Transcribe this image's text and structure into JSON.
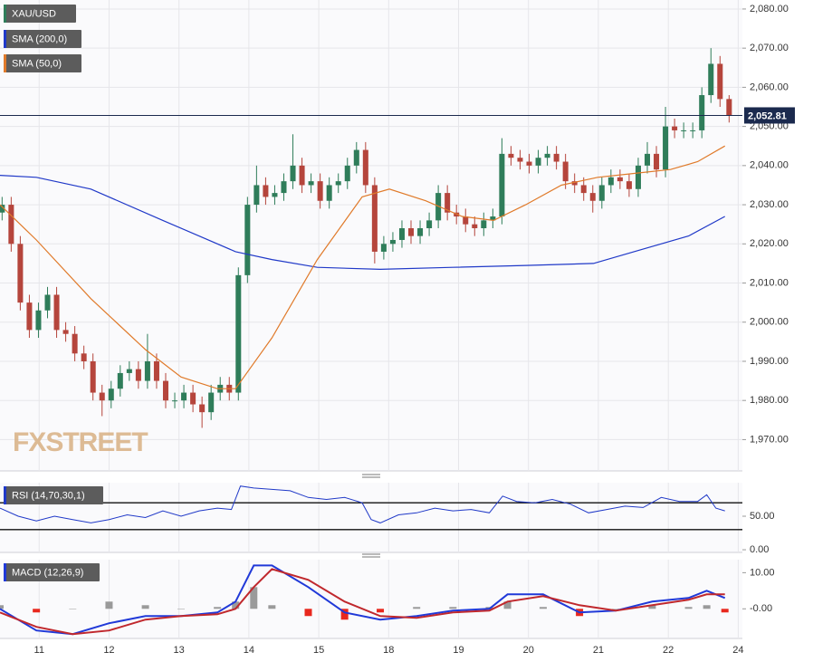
{
  "chart_data": [
    {
      "type": "candlestick",
      "name": "XAU/USD",
      "up_color": "#2f7d5a",
      "down_color": "#b5453c",
      "x": [
        -0.53,
        -0.4,
        -0.27,
        -0.14,
        -0.01,
        0.12,
        0.25,
        0.38,
        0.51,
        0.64,
        0.77,
        0.9,
        1.03,
        1.16,
        1.29,
        1.42,
        1.55,
        1.68,
        1.81,
        1.94,
        2.07,
        2.2,
        2.33,
        2.46,
        2.59,
        2.72,
        2.85,
        2.98,
        3.11,
        3.24,
        3.37,
        3.5,
        3.63,
        3.76,
        3.89,
        4.02,
        4.15,
        4.28,
        4.41,
        4.54,
        4.67,
        4.8,
        4.93,
        5.06,
        5.19,
        5.32,
        5.45,
        5.58,
        5.71,
        5.84,
        5.97,
        6.1,
        6.23,
        6.36,
        6.49,
        6.62,
        6.75,
        6.88,
        7.01,
        7.14,
        7.27,
        7.4,
        7.53,
        7.66,
        7.79,
        7.92,
        8.05,
        8.18,
        8.31,
        8.44,
        8.57,
        8.7,
        8.83,
        8.96,
        9.09,
        9.22,
        9.35,
        9.48,
        9.61,
        9.74,
        9.87
      ],
      "open": [
        2028,
        2030,
        2020,
        2005,
        1998,
        2003,
        2007,
        1998,
        1997,
        1992,
        1990,
        1982,
        1980,
        1983,
        1987,
        1988,
        1985,
        1990,
        1985,
        1980,
        1980,
        1982,
        1979,
        1977,
        1982,
        1984,
        1982,
        2012,
        2030,
        2035,
        2032,
        2033,
        2036,
        2040,
        2035,
        2036,
        2031,
        2035,
        2036,
        2040,
        2044,
        2035,
        2018,
        2020,
        2021,
        2024,
        2022,
        2024,
        2026,
        2033,
        2028,
        2027,
        2025,
        2024,
        2026,
        2027,
        2043,
        2042,
        2041,
        2040,
        2042,
        2043,
        2041,
        2036,
        2035,
        2033,
        2031,
        2035,
        2037,
        2036,
        2034,
        2040,
        2043,
        2039,
        2050,
        2049,
        2049,
        2049,
        2058,
        2066,
        2057
      ],
      "high": [
        2032,
        2032,
        2022,
        2007,
        2005,
        2009,
        2009,
        2000,
        1999,
        1994,
        1992,
        1984,
        1985,
        1989,
        1990,
        1990,
        1997,
        1992,
        1987,
        1982,
        1984,
        1984,
        1981,
        1984,
        1986,
        1986,
        2014,
        2032,
        2040,
        2037,
        2035,
        2038,
        2048,
        2042,
        2038,
        2038,
        2037,
        2038,
        2042,
        2046,
        2046,
        2037,
        2022,
        2023,
        2026,
        2026,
        2026,
        2028,
        2035,
        2035,
        2030,
        2029,
        2027,
        2028,
        2029,
        2047,
        2045,
        2044,
        2043,
        2044,
        2045,
        2045,
        2043,
        2038,
        2037,
        2035,
        2037,
        2039,
        2039,
        2038,
        2042,
        2046,
        2045,
        2055,
        2052,
        2051,
        2051,
        2060,
        2070,
        2068,
        2058
      ],
      "low": [
        2026,
        2018,
        2003,
        1996,
        1996,
        2001,
        1996,
        1995,
        1990,
        1988,
        1980,
        1976,
        1978,
        1981,
        1985,
        1983,
        1983,
        1983,
        1978,
        1978,
        1978,
        1977,
        1973,
        1975,
        1980,
        1980,
        1980,
        2010,
        2028,
        2030,
        2030,
        2031,
        2034,
        2033,
        2033,
        2029,
        2029,
        2033,
        2034,
        2038,
        2033,
        2015,
        2016,
        2018,
        2019,
        2020,
        2020,
        2022,
        2024,
        2026,
        2025,
        2023,
        2022,
        2022,
        2024,
        2025,
        2040,
        2039,
        2038,
        2038,
        2040,
        2039,
        2034,
        2033,
        2031,
        2028,
        2029,
        2033,
        2034,
        2032,
        2032,
        2038,
        2037,
        2037,
        2047,
        2047,
        2047,
        2047,
        2056,
        2055,
        2051
      ],
      "close": [
        2030,
        2020,
        2005,
        1998,
        2003,
        2007,
        1998,
        1997,
        1992,
        1990,
        1982,
        1980,
        1983,
        1987,
        1988,
        1985,
        1990,
        1985,
        1980,
        1980,
        1982,
        1979,
        1977,
        1982,
        1984,
        1982,
        2012,
        2030,
        2035,
        2032,
        2033,
        2036,
        2040,
        2035,
        2036,
        2031,
        2035,
        2036,
        2040,
        2044,
        2035,
        2018,
        2020,
        2021,
        2024,
        2022,
        2024,
        2026,
        2033,
        2028,
        2027,
        2025,
        2024,
        2026,
        2027,
        2043,
        2042,
        2041,
        2040,
        2042,
        2043,
        2041,
        2036,
        2035,
        2033,
        2031,
        2035,
        2037,
        2036,
        2034,
        2040,
        2043,
        2039,
        2050,
        2049,
        2049,
        2049,
        2058,
        2066,
        2057,
        2052.81
      ],
      "xlim": [
        -0.56,
        10.06
      ],
      "xticks": [
        {
          "value": 0,
          "label": "11"
        },
        {
          "value": 1,
          "label": "12"
        },
        {
          "value": 2,
          "label": "13"
        },
        {
          "value": 3,
          "label": "14"
        },
        {
          "value": 4,
          "label": "15"
        },
        {
          "value": 5,
          "label": "18"
        },
        {
          "value": 6,
          "label": "19"
        },
        {
          "value": 7,
          "label": "20"
        },
        {
          "value": 8,
          "label": "21"
        },
        {
          "value": 9,
          "label": "22"
        },
        {
          "value": 10,
          "label": "24"
        }
      ],
      "ylim": [
        1962,
        2082.3
      ],
      "yticks": [
        {
          "value": 1970,
          "label": "1,970.00"
        },
        {
          "value": 1980,
          "label": "1,980.00"
        },
        {
          "value": 1990,
          "label": "1,990.00"
        },
        {
          "value": 2000,
          "label": "2,000.00"
        },
        {
          "value": 2010,
          "label": "2,010.00"
        },
        {
          "value": 2020,
          "label": "2,020.00"
        },
        {
          "value": 2030,
          "label": "2,030.00"
        },
        {
          "value": 2040,
          "label": "2,040.00"
        },
        {
          "value": 2050,
          "label": "2,050.00"
        },
        {
          "value": 2060,
          "label": "2,060.00"
        },
        {
          "value": 2070,
          "label": "2,070.00"
        },
        {
          "value": 2080,
          "label": "2,080.00"
        }
      ],
      "grid": true,
      "current_price": {
        "value": 2052.81,
        "label": "2,052.81"
      },
      "watermark": "FXSTREET",
      "overlays": [
        {
          "name": "SMA (200,0)",
          "color": "#2039c8",
          "x": [
            -0.56,
            -0.04,
            0.74,
            1.77,
            2.81,
            3.33,
            3.98,
            4.88,
            5.92,
            6.96,
            7.93,
            8.51,
            9.29,
            9.81
          ],
          "values": [
            2037.5,
            2037,
            2034,
            2026,
            2018,
            2016,
            2014,
            2013.5,
            2014,
            2014.5,
            2015,
            2018,
            2022,
            2027
          ]
        },
        {
          "name": "SMA (50,0)",
          "color": "#e07a2a",
          "x": [
            -0.56,
            -0.04,
            0.74,
            1.52,
            2.03,
            2.55,
            2.81,
            3.33,
            3.98,
            4.62,
            5.01,
            5.53,
            6.05,
            6.5,
            6.96,
            7.47,
            7.99,
            8.51,
            9.03,
            9.42,
            9.81
          ],
          "values": [
            2030,
            2021,
            2006,
            1993,
            1986,
            1983,
            1983,
            1996,
            2016,
            2032,
            2034,
            2031,
            2027,
            2026,
            2030,
            2035,
            2037,
            2038,
            2039,
            2041,
            2045
          ]
        }
      ]
    },
    {
      "type": "line",
      "name": "RSI (14,70,30,1)",
      "color": "#2039c8",
      "levels": [
        30,
        70
      ],
      "x": [
        -0.56,
        -0.3,
        -0.04,
        0.22,
        0.48,
        0.74,
        1.0,
        1.26,
        1.52,
        1.77,
        2.03,
        2.29,
        2.55,
        2.75,
        2.88,
        3.07,
        3.33,
        3.59,
        3.85,
        4.11,
        4.37,
        4.62,
        4.75,
        4.88,
        5.14,
        5.4,
        5.66,
        5.92,
        6.18,
        6.44,
        6.63,
        6.83,
        7.09,
        7.34,
        7.6,
        7.86,
        8.12,
        8.38,
        8.64,
        8.9,
        9.16,
        9.42,
        9.55,
        9.68,
        9.81
      ],
      "values": [
        62,
        50,
        43,
        50,
        45,
        40,
        45,
        52,
        48,
        58,
        50,
        58,
        62,
        60,
        95,
        92,
        90,
        88,
        78,
        75,
        78,
        70,
        45,
        40,
        52,
        55,
        62,
        58,
        60,
        55,
        80,
        72,
        70,
        75,
        68,
        55,
        60,
        65,
        63,
        78,
        72,
        72,
        82,
        62,
        58
      ],
      "ylim": [
        -4,
        100
      ],
      "yticks": [
        {
          "value": 0,
          "label": "0.00"
        },
        {
          "value": 50,
          "label": "50.00"
        }
      ]
    },
    {
      "type": "macd",
      "name": "MACD (12,26,9)",
      "x": [
        -0.56,
        -0.04,
        0.48,
        1.0,
        1.52,
        2.03,
        2.55,
        2.81,
        3.07,
        3.33,
        3.85,
        4.37,
        4.88,
        5.4,
        5.92,
        6.44,
        6.7,
        7.21,
        7.73,
        8.25,
        8.77,
        9.29,
        9.55,
        9.81
      ],
      "series": [
        {
          "color": "#2039d8",
          "values": [
            0,
            -6,
            -7,
            -4,
            -2,
            -2,
            -1,
            2,
            12,
            12,
            6,
            -1,
            -3,
            -2,
            -0.5,
            0,
            4,
            4,
            -1,
            -0.5,
            2,
            3,
            5,
            3
          ]
        },
        {
          "color": "#c0282d",
          "values": [
            -1,
            -5,
            -7,
            -6,
            -3,
            -2,
            -1.5,
            0,
            6,
            11,
            8,
            2,
            -2,
            -2.5,
            -1,
            -0.5,
            2,
            3.5,
            1,
            -0.5,
            1,
            2.5,
            4,
            4
          ]
        }
      ],
      "histogram": {
        "up_color": "#9a9a9a",
        "down_color": "#e8281e",
        "values": [
          1,
          -1,
          0,
          2,
          1,
          0,
          0.5,
          2,
          6,
          1,
          -2,
          -3,
          -1,
          0.5,
          0.5,
          0.5,
          2,
          0.5,
          -2,
          0,
          1,
          0.5,
          1,
          -1
        ]
      },
      "ylim": [
        -8.2,
        13.6
      ],
      "yticks": [
        {
          "value": 0,
          "label": "-0.00"
        },
        {
          "value": 10,
          "label": "10.00"
        }
      ]
    }
  ]
}
